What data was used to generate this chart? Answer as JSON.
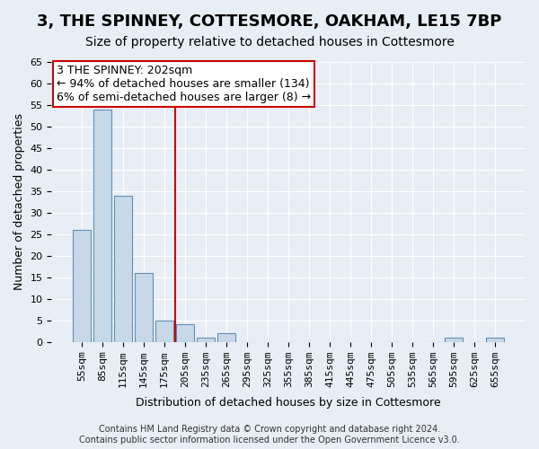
{
  "title": "3, THE SPINNEY, COTTESMORE, OAKHAM, LE15 7BP",
  "subtitle": "Size of property relative to detached houses in Cottesmore",
  "xlabel": "Distribution of detached houses by size in Cottesmore",
  "ylabel": "Number of detached properties",
  "categories": [
    "55sqm",
    "85sqm",
    "115sqm",
    "145sqm",
    "175sqm",
    "205sqm",
    "235sqm",
    "265sqm",
    "295sqm",
    "325sqm",
    "355sqm",
    "385sqm",
    "415sqm",
    "445sqm",
    "475sqm",
    "505sqm",
    "535sqm",
    "565sqm",
    "595sqm",
    "625sqm",
    "655sqm"
  ],
  "values": [
    26,
    54,
    34,
    16,
    5,
    4,
    1,
    2,
    0,
    0,
    0,
    0,
    0,
    0,
    0,
    0,
    0,
    0,
    1,
    0,
    1
  ],
  "bar_color": "#c8d8e8",
  "bar_edge_color": "#6090b8",
  "vline_x": 4.5,
  "vline_color": "#cc0000",
  "ylim": [
    0,
    65
  ],
  "yticks": [
    0,
    5,
    10,
    15,
    20,
    25,
    30,
    35,
    40,
    45,
    50,
    55,
    60,
    65
  ],
  "annotation_text": "3 THE SPINNEY: 202sqm\n← 94% of detached houses are smaller (134)\n6% of semi-detached houses are larger (8) →",
  "annotation_box_color": "#ffffff",
  "annotation_box_edge_color": "#cc0000",
  "footer_text": "Contains HM Land Registry data © Crown copyright and database right 2024.\nContains public sector information licensed under the Open Government Licence v3.0.",
  "background_color": "#e8eef5",
  "grid_color": "#ffffff",
  "title_fontsize": 13,
  "subtitle_fontsize": 10,
  "annotation_fontsize": 9,
  "tick_fontsize": 8
}
